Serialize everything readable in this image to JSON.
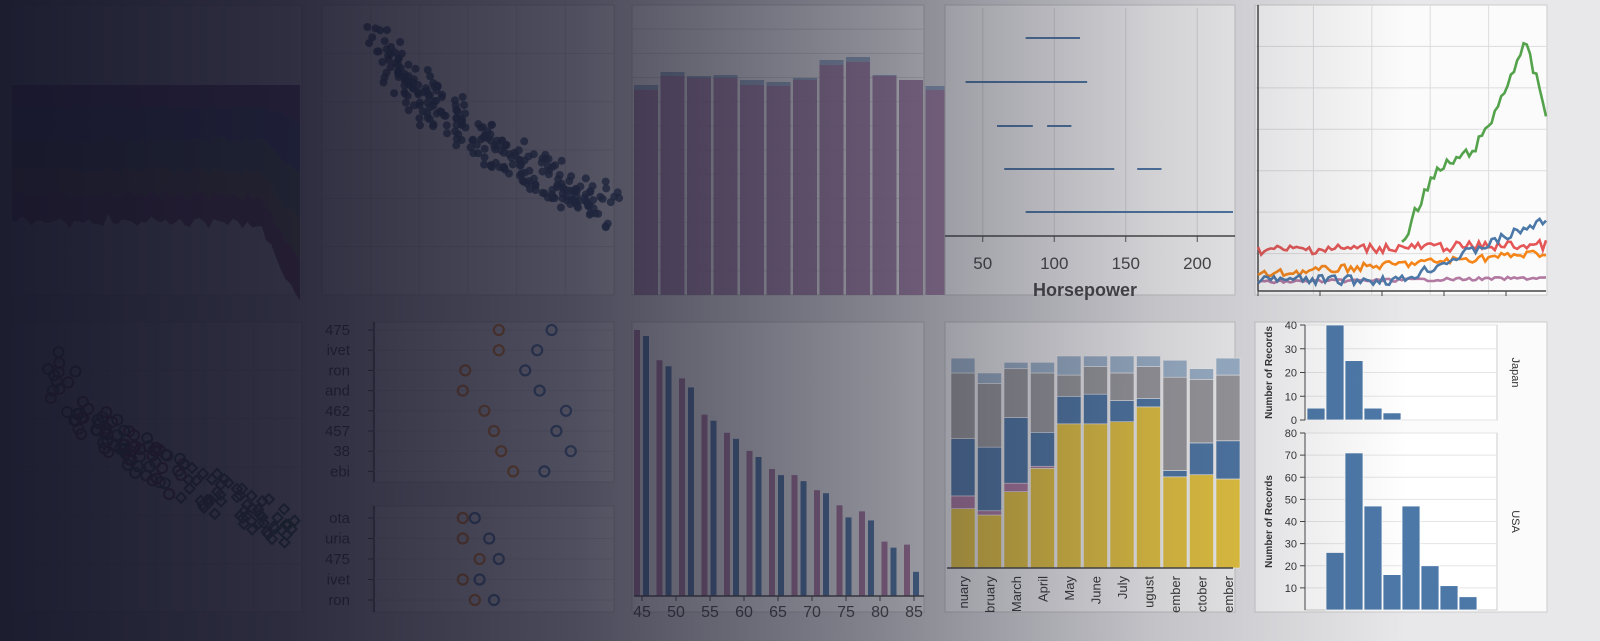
{
  "colors": {
    "stream": [
      "#5b2c6f",
      "#2c3e7a",
      "#2f5f3f",
      "#6b5d2a",
      "#7a2d4a"
    ],
    "scatter": "#1f3b5c",
    "bar_pink": "#b07aa1",
    "bar_blue": "#4c78a8",
    "hp_line": "#4c78a8",
    "lines": {
      "green": "#54a24b",
      "blue": "#4c78a8",
      "red": "#e45756",
      "orange": "#f58518",
      "purple": "#b279a2"
    },
    "stack": [
      "#eeca3b",
      "#b279a2",
      "#4c78a8",
      "#9d9da0",
      "#a0b8d0"
    ],
    "hist": "#4c78a8",
    "dots": {
      "orange": "#f58518",
      "blue": "#4c78a8"
    }
  },
  "chart_data": [
    {
      "id": "horsepower-strip",
      "type": "scatter",
      "xlabel": "Horsepower",
      "xticks": [
        50,
        100,
        150,
        200
      ],
      "xlim": [
        25,
        225
      ],
      "rows": [
        [
          [
            80,
            118
          ]
        ],
        [
          [
            38,
            123
          ]
        ],
        [
          [
            60,
            85
          ],
          [
            95,
            112
          ]
        ],
        [
          [
            65,
            142
          ],
          [
            158,
            175
          ]
        ],
        [
          [
            80,
            225
          ]
        ]
      ]
    },
    {
      "id": "year-bars",
      "type": "bar",
      "xticks": [
        "45",
        "50",
        "55",
        "60",
        "65",
        "70",
        "75",
        "80",
        "85"
      ],
      "series": [
        {
          "color_key": "bar_pink",
          "values": [
            88,
            78,
            72,
            60,
            54,
            48,
            42,
            40,
            35,
            30,
            28,
            18,
            17
          ]
        },
        {
          "color_key": "bar_blue",
          "values": [
            86,
            76,
            69,
            58,
            52,
            46,
            40,
            38,
            34,
            26,
            25,
            16,
            8
          ]
        }
      ]
    },
    {
      "id": "monthly-stack",
      "type": "bar",
      "categories": [
        "nuary",
        "bruary",
        "March",
        "April",
        "May",
        "June",
        "July",
        "ugust",
        "ember",
        "ctober",
        "ember"
      ],
      "series": [
        {
          "values": [
            28,
            25,
            36,
            47,
            68,
            68,
            69,
            76,
            43,
            44,
            42
          ]
        },
        {
          "values": [
            6,
            2,
            4,
            1,
            0,
            0,
            0,
            0,
            0,
            0,
            0
          ]
        },
        {
          "values": [
            27,
            30,
            31,
            16,
            13,
            14,
            10,
            4,
            3,
            15,
            18
          ]
        },
        {
          "values": [
            31,
            30,
            23,
            28,
            10,
            13,
            13,
            15,
            44,
            30,
            31
          ]
        },
        {
          "values": [
            7,
            5,
            3,
            5,
            9,
            5,
            8,
            5,
            8,
            5,
            8
          ]
        }
      ]
    },
    {
      "id": "origin-histograms",
      "type": "bar",
      "facets": [
        {
          "label": "Japan",
          "ylabel": "Number of Records",
          "ylim": [
            0,
            40
          ],
          "yticks": [
            0,
            10,
            20,
            30,
            40
          ],
          "values": [
            5,
            43,
            25,
            5,
            3,
            0,
            0,
            0,
            0,
            0
          ]
        },
        {
          "label": "USA",
          "ylabel": "Number of Records",
          "ylim": [
            0,
            80
          ],
          "yticks": [
            10,
            20,
            30,
            40,
            50,
            60,
            70,
            80
          ],
          "values": [
            0,
            26,
            71,
            47,
            16,
            47,
            20,
            11,
            6,
            0
          ]
        }
      ]
    },
    {
      "id": "dot-plot",
      "type": "scatter",
      "panels": [
        {
          "labels": [
            "475",
            "ivet",
            "ron",
            "and",
            "462",
            "457",
            "38",
            "ebi"
          ],
          "orange": [
            0.52,
            0.52,
            0.38,
            0.37,
            0.46,
            0.5,
            0.53,
            0.58
          ],
          "blue": [
            0.74,
            0.68,
            0.63,
            0.69,
            0.8,
            0.76,
            0.82,
            0.71
          ]
        },
        {
          "labels": [
            "ota",
            "uria",
            "475",
            "ivet",
            "ron"
          ],
          "orange": [
            0.37,
            0.37,
            0.44,
            0.37,
            0.42
          ],
          "blue": [
            0.42,
            0.48,
            0.52,
            0.44,
            0.5
          ]
        }
      ]
    }
  ]
}
